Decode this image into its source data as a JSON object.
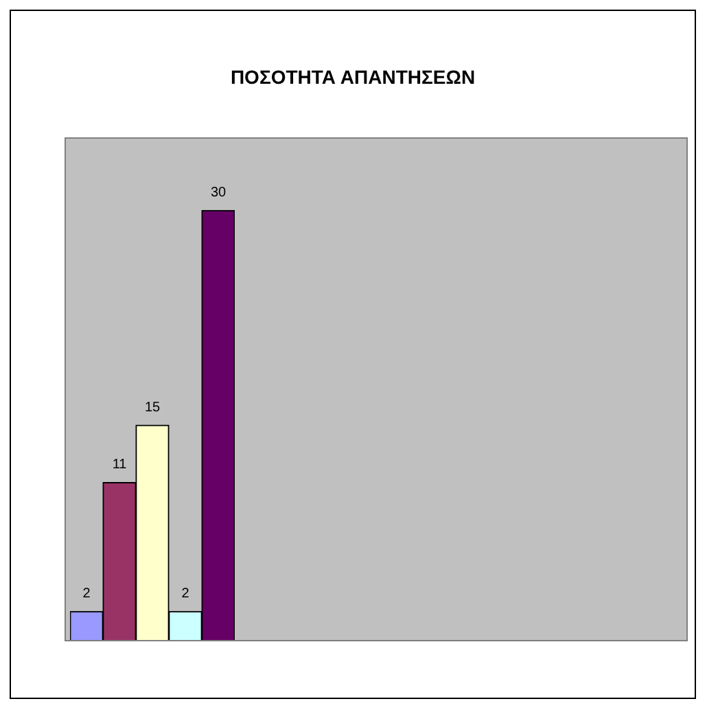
{
  "chart_data": {
    "type": "bar",
    "title": "ΠΟΣΟΤΗΤΑ ΑΠΑΝΤΗΣΕΩΝ",
    "categories": [
      null,
      null,
      null,
      null,
      null
    ],
    "values": [
      2,
      11,
      15,
      2,
      30
    ],
    "colors": [
      "#9999ff",
      "#993366",
      "#ffffcc",
      "#ccffff",
      "#660066"
    ],
    "data_labels": true,
    "legend": false,
    "tick_labels": false
  }
}
